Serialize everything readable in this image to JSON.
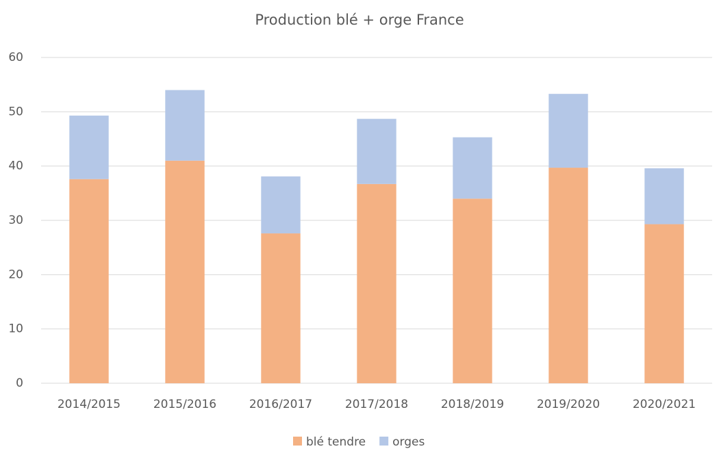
{
  "chart_data": {
    "type": "stacked_bar",
    "title": "Production blé + orge France",
    "categories": [
      "2014/2015",
      "2015/2016",
      "2016/2017",
      "2017/2018",
      "2018/2019",
      "2019/2020",
      "2020/2021"
    ],
    "series": [
      {
        "name": "blé tendre",
        "color": "#f4b183",
        "values": [
          37.6,
          41.0,
          27.6,
          36.7,
          34.0,
          39.7,
          29.3
        ]
      },
      {
        "name": "orges",
        "color": "#b4c7e7",
        "values": [
          11.7,
          13.0,
          10.5,
          12.0,
          11.3,
          13.6,
          10.3
        ]
      }
    ],
    "ylim": [
      0,
      60
    ],
    "yticks": [
      0,
      10,
      20,
      30,
      40,
      50,
      60
    ],
    "grid": true,
    "legend": "bottom"
  }
}
